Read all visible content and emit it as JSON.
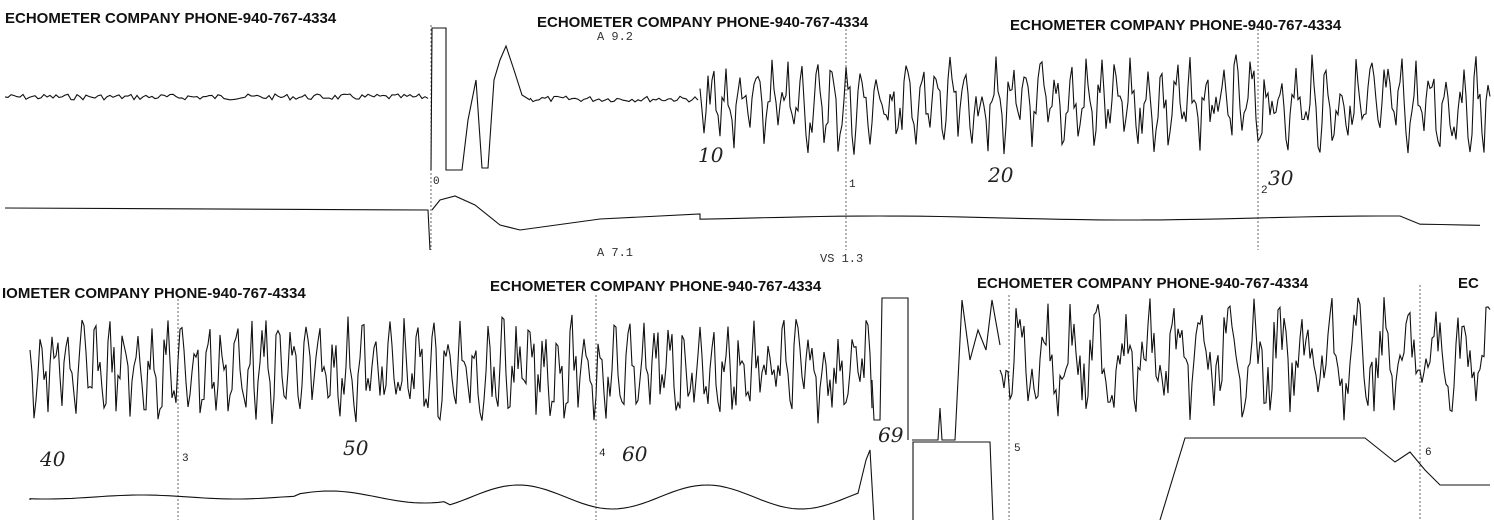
{
  "headers": [
    "ECHOMETER COMPANY  PHONE-940-767-4334",
    "ECHOMETER COMPANY  PHONE-940-767-4334",
    "ECHOMETER COMPANY  PHONE-940-767-4334",
    "IOMETER COMPANY  PHONE-940-767-4334",
    "ECHOMETER COMPANY  PHONE-940-767-4334",
    "ECHOMETER COMPANY  PHONE-940-767-4334",
    "EC"
  ],
  "annotations": [
    "A  9.2",
    "A  7.1",
    "VS 1.3"
  ],
  "time_marks": [
    "0",
    "1",
    "2",
    "3",
    "4",
    "5",
    "6"
  ],
  "handwritten_counts": [
    "10",
    "20",
    "30",
    "40",
    "50",
    "60",
    "69"
  ]
}
